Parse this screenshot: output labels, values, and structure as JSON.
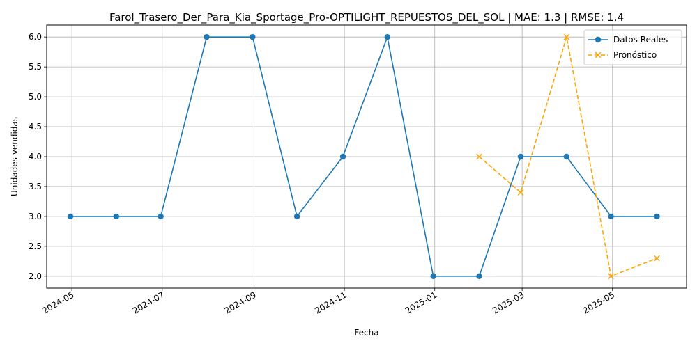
{
  "chart_data": {
    "type": "line",
    "title": "Farol_Trasero_Der_Para_Kia_Sportage_Pro-OPTILIGHT_REPUESTOS_DEL_SOL | MAE: 1.3 | RMSE: 1.4",
    "xlabel": "Fecha",
    "ylabel": "Unidades vendidas",
    "grid": true,
    "legend_position": "top-right",
    "xlim": [
      "2024-04-14",
      "2025-06-20"
    ],
    "ylim": [
      1.8,
      6.2
    ],
    "x_ticks": [
      "2024-05",
      "2024-07",
      "2024-09",
      "2024-11",
      "2025-01",
      "2025-03",
      "2025-05"
    ],
    "y_ticks": [
      2.0,
      2.5,
      3.0,
      3.5,
      4.0,
      4.5,
      5.0,
      5.5,
      6.0
    ],
    "series": [
      {
        "name": "Datos Reales",
        "color": "#1f77b4",
        "style": "solid",
        "marker": "circle",
        "x": [
          "2024-04-30",
          "2024-05-31",
          "2024-06-30",
          "2024-07-31",
          "2024-08-31",
          "2024-09-30",
          "2024-10-31",
          "2024-11-30",
          "2024-12-31",
          "2025-01-31",
          "2025-02-28",
          "2025-03-31",
          "2025-04-30",
          "2025-05-31"
        ],
        "values": [
          3,
          3,
          3,
          6,
          6,
          3,
          4,
          6,
          2,
          2,
          4,
          4,
          3,
          3
        ]
      },
      {
        "name": "Pronóstico",
        "color": "#ffa500",
        "style": "dashed",
        "marker": "x",
        "x": [
          "2025-01-31",
          "2025-02-28",
          "2025-03-31",
          "2025-04-30",
          "2025-05-31"
        ],
        "values": [
          4.0,
          3.4,
          6.0,
          2.0,
          2.3
        ]
      }
    ]
  }
}
